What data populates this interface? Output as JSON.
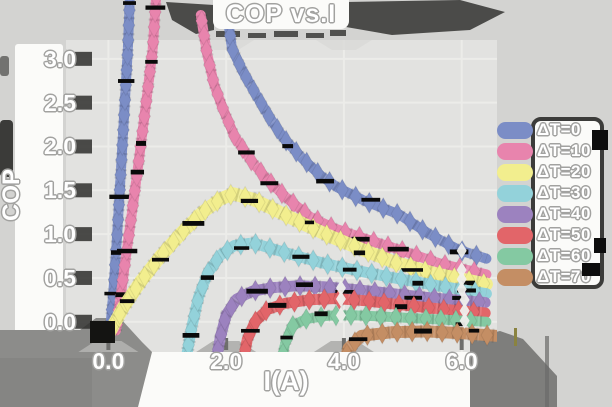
{
  "chart_data": {
    "type": "line",
    "title": "COP vs.I",
    "xlabel": "I(A)",
    "ylabel": "COP",
    "xlim": [
      -0.72,
      6.6
    ],
    "ylim": [
      -0.345,
      3.215
    ],
    "grid": true,
    "legend_position": "right",
    "x_ticks": [
      {
        "value": 0,
        "label": "0.0"
      },
      {
        "value": 2,
        "label": "2.0"
      },
      {
        "value": 4,
        "label": "4.0"
      },
      {
        "value": 6,
        "label": "6.0"
      }
    ],
    "y_ticks": [
      {
        "value": 0.0,
        "label": "0.0"
      },
      {
        "value": 0.5,
        "label": "0.5"
      },
      {
        "value": 1.0,
        "label": "1.0"
      },
      {
        "value": 1.5,
        "label": "1.5"
      },
      {
        "value": 2.0,
        "label": "2.0"
      },
      {
        "value": 2.5,
        "label": "2.5"
      },
      {
        "value": 3.0,
        "label": "3.0"
      }
    ],
    "series": [
      {
        "name": "ΔT=0",
        "delta_t": 0,
        "color": "#7b8dc6",
        "branches": [
          [
            [
              0.03,
              -0.1
            ],
            [
              0.09,
              0.4
            ],
            [
              0.15,
              1.0
            ],
            [
              0.21,
              1.7
            ],
            [
              0.27,
              2.4
            ],
            [
              0.33,
              3.1
            ],
            [
              0.37,
              3.8
            ]
          ],
          [
            [
              2.02,
              3.5
            ],
            [
              2.1,
              3.12
            ],
            [
              2.28,
              2.86
            ],
            [
              2.5,
              2.6
            ],
            [
              2.73,
              2.34
            ],
            [
              2.97,
              2.1
            ],
            [
              3.3,
              1.86
            ],
            [
              3.62,
              1.66
            ],
            [
              3.9,
              1.53
            ],
            [
              4.35,
              1.38
            ],
            [
              4.95,
              1.22
            ],
            [
              5.45,
              1.0
            ],
            [
              5.95,
              0.82
            ],
            [
              6.42,
              0.72
            ]
          ]
        ]
      },
      {
        "name": "ΔT=10",
        "delta_t": 10,
        "color": "#e884ad",
        "branches": [
          [
            [
              0.13,
              -0.1
            ],
            [
              0.24,
              0.45
            ],
            [
              0.37,
              1.1
            ],
            [
              0.51,
              1.8
            ],
            [
              0.64,
              2.5
            ],
            [
              0.75,
              3.1
            ],
            [
              0.82,
              3.8
            ]
          ],
          [
            [
              1.57,
              3.5
            ],
            [
              1.67,
              3.08
            ],
            [
              1.79,
              2.72
            ],
            [
              1.94,
              2.44
            ],
            [
              2.14,
              2.12
            ],
            [
              2.4,
              1.86
            ],
            [
              2.7,
              1.62
            ],
            [
              3.05,
              1.4
            ],
            [
              3.42,
              1.2
            ],
            [
              3.82,
              1.07
            ],
            [
              4.35,
              0.95
            ],
            [
              4.95,
              0.82
            ],
            [
              5.65,
              0.66
            ],
            [
              6.42,
              0.54
            ]
          ]
        ]
      },
      {
        "name": "ΔT=20",
        "delta_t": 20,
        "color": "#f2ee8e",
        "branches": [
          [
            [
              0.02,
              -0.12
            ],
            [
              0.25,
              0.16
            ],
            [
              0.55,
              0.46
            ],
            [
              0.9,
              0.76
            ],
            [
              1.25,
              1.02
            ],
            [
              1.6,
              1.25
            ],
            [
              1.9,
              1.4
            ],
            [
              2.12,
              1.46
            ],
            [
              2.45,
              1.4
            ],
            [
              2.85,
              1.27
            ],
            [
              3.3,
              1.12
            ],
            [
              3.75,
              0.98
            ],
            [
              4.25,
              0.84
            ],
            [
              4.85,
              0.68
            ],
            [
              5.6,
              0.54
            ],
            [
              6.42,
              0.43
            ]
          ]
        ]
      },
      {
        "name": "ΔT=30",
        "delta_t": 30,
        "color": "#93d2da",
        "branches": [
          [
            [
              1.3,
              -0.5
            ],
            [
              1.41,
              -0.08
            ],
            [
              1.53,
              0.28
            ],
            [
              1.69,
              0.56
            ],
            [
              1.9,
              0.76
            ],
            [
              2.14,
              0.87
            ],
            [
              2.45,
              0.9
            ],
            [
              2.8,
              0.83
            ],
            [
              3.2,
              0.75
            ],
            [
              3.7,
              0.66
            ],
            [
              4.25,
              0.58
            ],
            [
              4.85,
              0.5
            ],
            [
              5.6,
              0.41
            ],
            [
              6.42,
              0.32
            ]
          ]
        ]
      },
      {
        "name": "ΔT=40",
        "delta_t": 40,
        "color": "#9c82bf",
        "branches": [
          [
            [
              1.8,
              -0.55
            ],
            [
              1.9,
              -0.18
            ],
            [
              2.0,
              0.08
            ],
            [
              2.18,
              0.26
            ],
            [
              2.45,
              0.35
            ],
            [
              2.8,
              0.39
            ],
            [
              3.2,
              0.41
            ],
            [
              3.65,
              0.4
            ],
            [
              4.15,
              0.37
            ],
            [
              4.7,
              0.33
            ],
            [
              5.45,
              0.275
            ],
            [
              6.4,
              0.22
            ]
          ]
        ]
      },
      {
        "name": "ΔT=50",
        "delta_t": 50,
        "color": "#e26569",
        "branches": [
          [
            [
              2.26,
              -0.55
            ],
            [
              2.36,
              -0.2
            ],
            [
              2.49,
              0.0
            ],
            [
              2.7,
              0.14
            ],
            [
              3.0,
              0.21
            ],
            [
              3.4,
              0.25
            ],
            [
              3.85,
              0.265
            ],
            [
              4.35,
              0.24
            ],
            [
              4.95,
              0.195
            ],
            [
              5.65,
              0.145
            ],
            [
              6.4,
              0.1
            ]
          ]
        ]
      },
      {
        "name": "ΔT=60",
        "delta_t": 60,
        "color": "#84c9a2",
        "branches": [
          [
            [
              2.9,
              -0.6
            ],
            [
              3.0,
              -0.25
            ],
            [
              3.12,
              -0.05
            ],
            [
              3.35,
              0.03
            ],
            [
              3.75,
              0.07
            ],
            [
              4.15,
              0.075
            ],
            [
              4.65,
              0.06
            ],
            [
              5.2,
              0.04
            ],
            [
              5.8,
              0.02
            ],
            [
              6.42,
              0.0
            ]
          ]
        ]
      },
      {
        "name": "ΔT=70",
        "delta_t": 70,
        "color": "#c48e64",
        "branches": [
          [
            [
              3.95,
              -0.6
            ],
            [
              4.08,
              -0.3
            ],
            [
              4.3,
              -0.16
            ],
            [
              4.8,
              -0.12
            ],
            [
              5.4,
              -0.11
            ],
            [
              6.0,
              -0.13
            ],
            [
              6.58,
              -0.16
            ]
          ]
        ]
      }
    ]
  }
}
